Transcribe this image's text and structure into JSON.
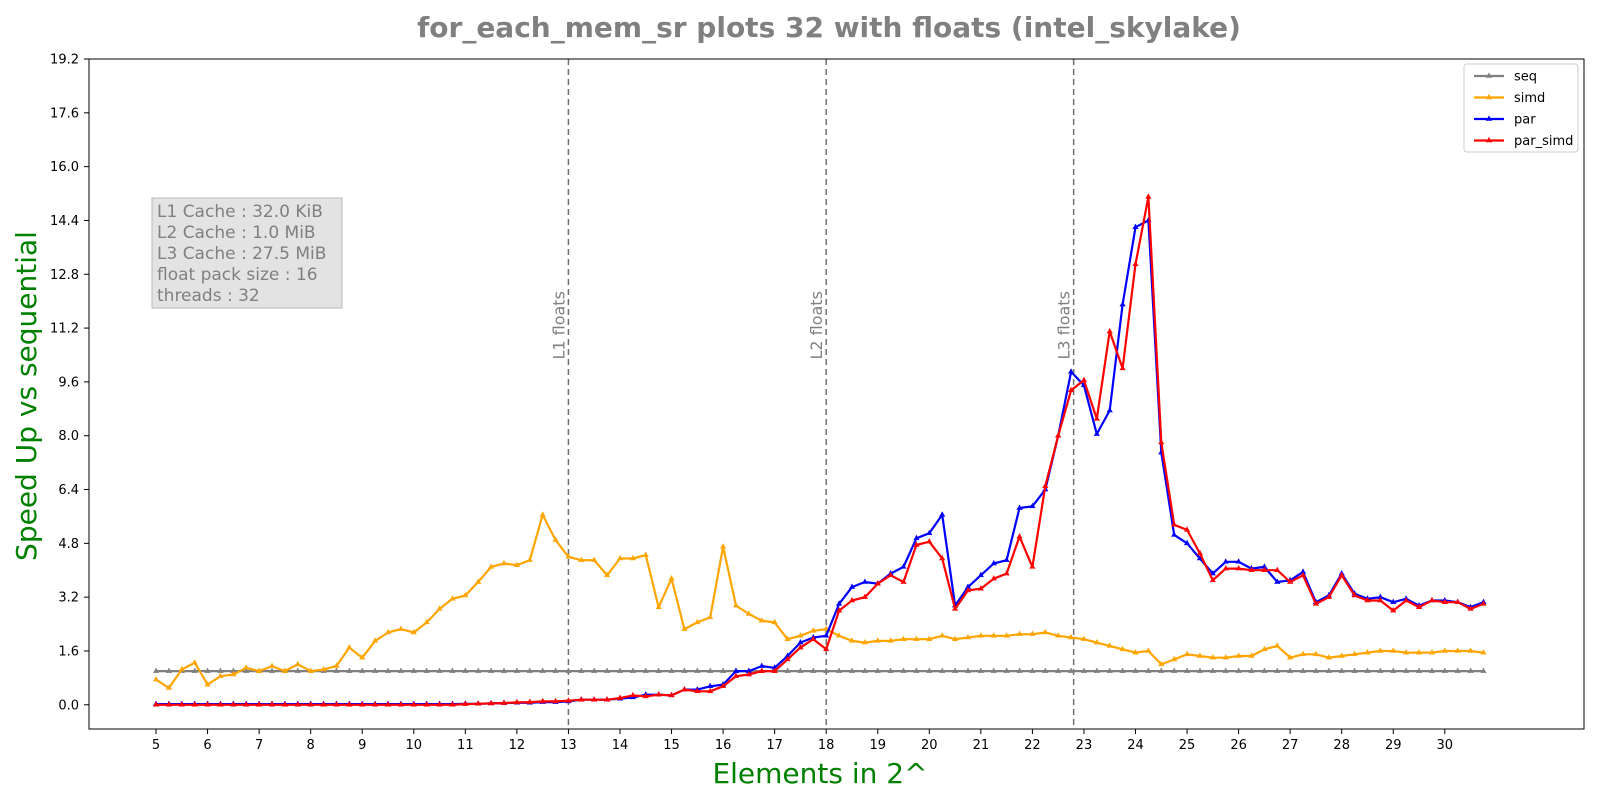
{
  "chart_data": {
    "type": "line",
    "title": "for_each_mem_sr plots 32 with floats  (intel_skylake)",
    "xlabel": "Elements in 2^",
    "ylabel": "Speed Up vs sequential",
    "xlim": [
      3.7,
      32.7
    ],
    "ylim": [
      -0.72,
      19.2
    ],
    "x_ticks": [
      5,
      6,
      7,
      8,
      9,
      10,
      11,
      12,
      13,
      14,
      15,
      16,
      17,
      18,
      19,
      20,
      21,
      22,
      23,
      24,
      25,
      26,
      27,
      28,
      29,
      30
    ],
    "x_tick_labels": [
      "5",
      "6",
      "7",
      "8",
      "9",
      "10",
      "11",
      "12",
      "13",
      "14",
      "15",
      "16",
      "17",
      "18",
      "19",
      "20",
      "21",
      "22",
      "23",
      "24",
      "25",
      "26",
      "27",
      "28",
      "29",
      "30"
    ],
    "y_ticks": [
      0.0,
      1.6,
      3.2,
      4.8,
      6.4,
      8.0,
      9.6,
      11.2,
      12.8,
      14.4,
      16.0,
      17.6,
      19.2
    ],
    "y_tick_labels": [
      "0.0",
      "1.6",
      "3.2",
      "4.8",
      "6.4",
      "8.0",
      "9.6",
      "11.2",
      "12.8",
      "14.4",
      "16.0",
      "17.6",
      "19.2"
    ],
    "grid": false,
    "legend_position": "top-right",
    "x_start": 5,
    "x_step": 0.25,
    "series": [
      {
        "name": "seq",
        "color": "#808080",
        "values": [
          1,
          1,
          1,
          1,
          1,
          1,
          1,
          1,
          1,
          1,
          1,
          1,
          1,
          1,
          1,
          1,
          1,
          1,
          1,
          1,
          1,
          1,
          1,
          1,
          1,
          1,
          1,
          1,
          1,
          1,
          1,
          1,
          1,
          1,
          1,
          1,
          1,
          1,
          1,
          1,
          1,
          1,
          1,
          1,
          1,
          1,
          1,
          1,
          1,
          1,
          1,
          1,
          1,
          1,
          1,
          1,
          1,
          1,
          1,
          1,
          1,
          1,
          1,
          1,
          1,
          1,
          1,
          1,
          1,
          1,
          1,
          1,
          1,
          1,
          1,
          1,
          1,
          1,
          1,
          1,
          1,
          1,
          1,
          1,
          1,
          1,
          1,
          1,
          1,
          1,
          1,
          1,
          1,
          1,
          1,
          1,
          1,
          1,
          1,
          1,
          1,
          1,
          1,
          1
        ]
      },
      {
        "name": "simd",
        "color": "#FFA500",
        "values": [
          0.75,
          0.5,
          1.05,
          1.25,
          0.6,
          0.85,
          0.9,
          1.1,
          1.0,
          1.15,
          1.0,
          1.2,
          1.0,
          1.05,
          1.15,
          1.7,
          1.4,
          1.9,
          2.15,
          2.25,
          2.15,
          2.45,
          2.85,
          3.15,
          3.25,
          3.65,
          4.1,
          4.2,
          4.15,
          4.3,
          5.65,
          4.9,
          4.4,
          4.3,
          4.3,
          3.85,
          4.35,
          4.35,
          4.45,
          2.9,
          3.75,
          2.25,
          2.45,
          2.6,
          4.7,
          2.95,
          2.7,
          2.5,
          2.45,
          1.95,
          2.05,
          2.2,
          2.25,
          2.05,
          1.9,
          1.85,
          1.9,
          1.9,
          1.95,
          1.95,
          1.95,
          2.05,
          1.95,
          2.0,
          2.05,
          2.05,
          2.05,
          2.1,
          2.1,
          2.15,
          2.05,
          2.0,
          1.95,
          1.85,
          1.75,
          1.65,
          1.55,
          1.6,
          1.2,
          1.35,
          1.5,
          1.45,
          1.4,
          1.4,
          1.45,
          1.45,
          1.65,
          1.75,
          1.4,
          1.5,
          1.5,
          1.4,
          1.45,
          1.5,
          1.55,
          1.6,
          1.6,
          1.55,
          1.55,
          1.55,
          1.6,
          1.6,
          1.6,
          1.55
        ]
      },
      {
        "name": "par",
        "color": "#0000FF",
        "values": [
          0.02,
          0.02,
          0.02,
          0.02,
          0.02,
          0.02,
          0.02,
          0.02,
          0.02,
          0.02,
          0.02,
          0.02,
          0.02,
          0.02,
          0.02,
          0.02,
          0.02,
          0.02,
          0.02,
          0.02,
          0.02,
          0.02,
          0.02,
          0.02,
          0.03,
          0.03,
          0.04,
          0.05,
          0.06,
          0.06,
          0.08,
          0.08,
          0.1,
          0.15,
          0.15,
          0.15,
          0.18,
          0.22,
          0.3,
          0.3,
          0.28,
          0.45,
          0.45,
          0.55,
          0.6,
          1.0,
          1.0,
          1.15,
          1.1,
          1.45,
          1.85,
          2.0,
          2.05,
          3.0,
          3.5,
          3.65,
          3.6,
          3.9,
          4.1,
          4.95,
          5.1,
          5.65,
          2.95,
          3.5,
          3.85,
          4.2,
          4.3,
          5.85,
          5.9,
          6.4,
          8.0,
          9.9,
          9.5,
          8.05,
          8.75,
          11.9,
          14.2,
          14.4,
          7.5,
          5.05,
          4.8,
          4.35,
          3.9,
          4.25,
          4.25,
          4.05,
          4.1,
          3.65,
          3.7,
          3.95,
          3.05,
          3.25,
          3.9,
          3.3,
          3.15,
          3.2,
          3.05,
          3.15,
          2.95,
          3.1,
          3.1,
          3.05,
          2.9,
          3.05
        ]
      },
      {
        "name": "par_simd",
        "color": "#FF0000",
        "values": [
          0.0,
          0.0,
          0.0,
          0.0,
          0.0,
          0.0,
          0.0,
          0.0,
          0.0,
          0.0,
          0.0,
          0.0,
          0.0,
          0.0,
          0.0,
          0.0,
          0.0,
          0.0,
          0.0,
          0.0,
          0.0,
          0.0,
          0.0,
          0.0,
          0.02,
          0.03,
          0.04,
          0.05,
          0.07,
          0.08,
          0.1,
          0.1,
          0.12,
          0.15,
          0.15,
          0.15,
          0.2,
          0.28,
          0.25,
          0.3,
          0.28,
          0.45,
          0.4,
          0.4,
          0.55,
          0.85,
          0.9,
          1.0,
          1.0,
          1.35,
          1.7,
          1.95,
          1.65,
          2.8,
          3.1,
          3.2,
          3.6,
          3.85,
          3.65,
          4.75,
          4.85,
          4.35,
          2.85,
          3.4,
          3.45,
          3.75,
          3.9,
          5.0,
          4.1,
          6.5,
          8.0,
          9.35,
          9.65,
          8.5,
          11.1,
          10.0,
          13.1,
          15.1,
          7.8,
          5.35,
          5.2,
          4.5,
          3.7,
          4.05,
          4.05,
          4.0,
          4.0,
          4.0,
          3.65,
          3.85,
          3.0,
          3.2,
          3.85,
          3.25,
          3.1,
          3.1,
          2.8,
          3.1,
          2.9,
          3.1,
          3.05,
          3.05,
          2.85,
          3.0
        ]
      }
    ],
    "vertical_lines": [
      {
        "x": 13.0,
        "label": "L1 floats"
      },
      {
        "x": 18.0,
        "label": "L2 floats"
      },
      {
        "x": 22.8,
        "label": "L3 floats"
      }
    ],
    "info_box": {
      "lines": [
        "L1 Cache : 32.0 KiB",
        "L2 Cache : 1.0 MiB",
        "L3 Cache : 27.5 MiB",
        "float pack size : 16",
        "threads : 32"
      ]
    }
  }
}
